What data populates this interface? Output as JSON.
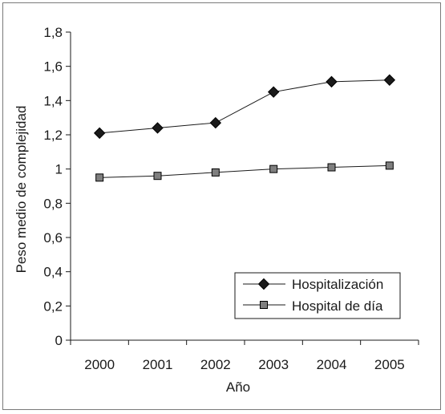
{
  "chart_data": {
    "type": "line",
    "title": "",
    "xlabel": "Año",
    "ylabel": "Peso medio de complejidad",
    "categories": [
      "2000",
      "2001",
      "2002",
      "2003",
      "2004",
      "2005"
    ],
    "ylim": [
      0,
      1.8
    ],
    "yticks": [
      0,
      0.2,
      0.4,
      0.6,
      0.8,
      1,
      1.2,
      1.4,
      1.6,
      1.8
    ],
    "ytick_labels": [
      "0",
      "0,2",
      "0,4",
      "0,6",
      "0,8",
      "1",
      "1,2",
      "1,4",
      "1,6",
      "1,8"
    ],
    "grid": false,
    "legend_position": "bottom-right",
    "series": [
      {
        "name": "Hospitalización",
        "values": [
          1.21,
          1.24,
          1.27,
          1.45,
          1.51,
          1.52
        ],
        "marker": "diamond",
        "color": "#1a1a1a"
      },
      {
        "name": "Hospital de día",
        "values": [
          0.95,
          0.96,
          0.98,
          1.0,
          1.01,
          1.02
        ],
        "marker": "square",
        "color": "#7f7f7f"
      }
    ]
  }
}
